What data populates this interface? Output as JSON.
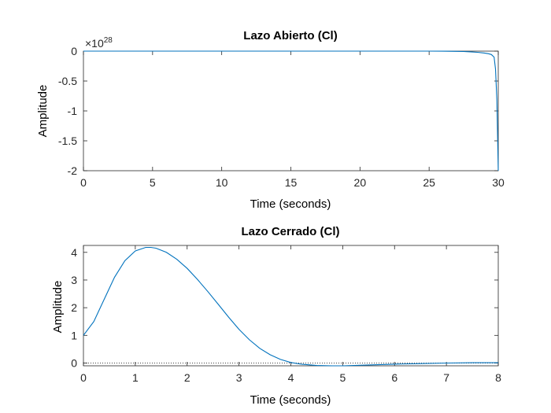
{
  "chart_data": [
    {
      "type": "line",
      "title": "Lazo Abierto (Cl)",
      "xlabel": "Time (seconds)",
      "ylabel": "Amplitude",
      "xlim": [
        0,
        30
      ],
      "ylim": [
        -2,
        0
      ],
      "x_ticks": [
        0,
        5,
        10,
        15,
        20,
        25,
        30
      ],
      "y_ticks": [
        0,
        -0.5,
        -1,
        -1.5,
        -2
      ],
      "y_tick_labels": [
        "0",
        "-0.5",
        "-1",
        "-1.5",
        "-2"
      ],
      "y_exponent_base": "×10",
      "y_exponent": "28",
      "color": "#0072BD",
      "series": [
        {
          "x": [
            0,
            20,
            25,
            26,
            27,
            27.5,
            28,
            28.5,
            29,
            29.3,
            29.5,
            29.7,
            29.8,
            29.9,
            30
          ],
          "y": [
            0,
            0,
            -0.0006,
            -0.0016,
            -0.0043,
            -0.0071,
            -0.0118,
            -0.0194,
            -0.0321,
            -0.0439,
            -0.0567,
            -0.1,
            -0.3,
            -0.8,
            -2.0
          ]
        }
      ]
    },
    {
      "type": "line",
      "title": "Lazo Cerrado (Cl)",
      "xlabel": "Time (seconds)",
      "ylabel": "Amplitude",
      "xlim": [
        0,
        8
      ],
      "ylim": [
        -0.1,
        4.25
      ],
      "x_ticks": [
        0,
        1,
        2,
        3,
        4,
        5,
        6,
        7,
        8
      ],
      "y_ticks": [
        0,
        1,
        2,
        3,
        4
      ],
      "y_tick_labels": [
        "0",
        "1",
        "2",
        "3",
        "4"
      ],
      "reference_line": 0,
      "color": "#0072BD",
      "series": [
        {
          "x": [
            0,
            0.2,
            0.4,
            0.6,
            0.8,
            1.0,
            1.2,
            1.3,
            1.4,
            1.6,
            1.8,
            2.0,
            2.2,
            2.4,
            2.6,
            2.8,
            3.0,
            3.2,
            3.4,
            3.6,
            3.8,
            4.0,
            4.2,
            4.5,
            4.8,
            5.0,
            5.5,
            6.0,
            6.5,
            7.0,
            7.5,
            8.0
          ],
          "y": [
            1.0,
            1.5,
            2.3,
            3.1,
            3.7,
            4.05,
            4.18,
            4.18,
            4.15,
            4.0,
            3.75,
            3.42,
            3.02,
            2.58,
            2.12,
            1.66,
            1.22,
            0.84,
            0.53,
            0.3,
            0.13,
            0.02,
            -0.04,
            -0.09,
            -0.1,
            -0.1,
            -0.07,
            -0.04,
            -0.02,
            0.0,
            0.01,
            0.01
          ]
        }
      ]
    }
  ]
}
